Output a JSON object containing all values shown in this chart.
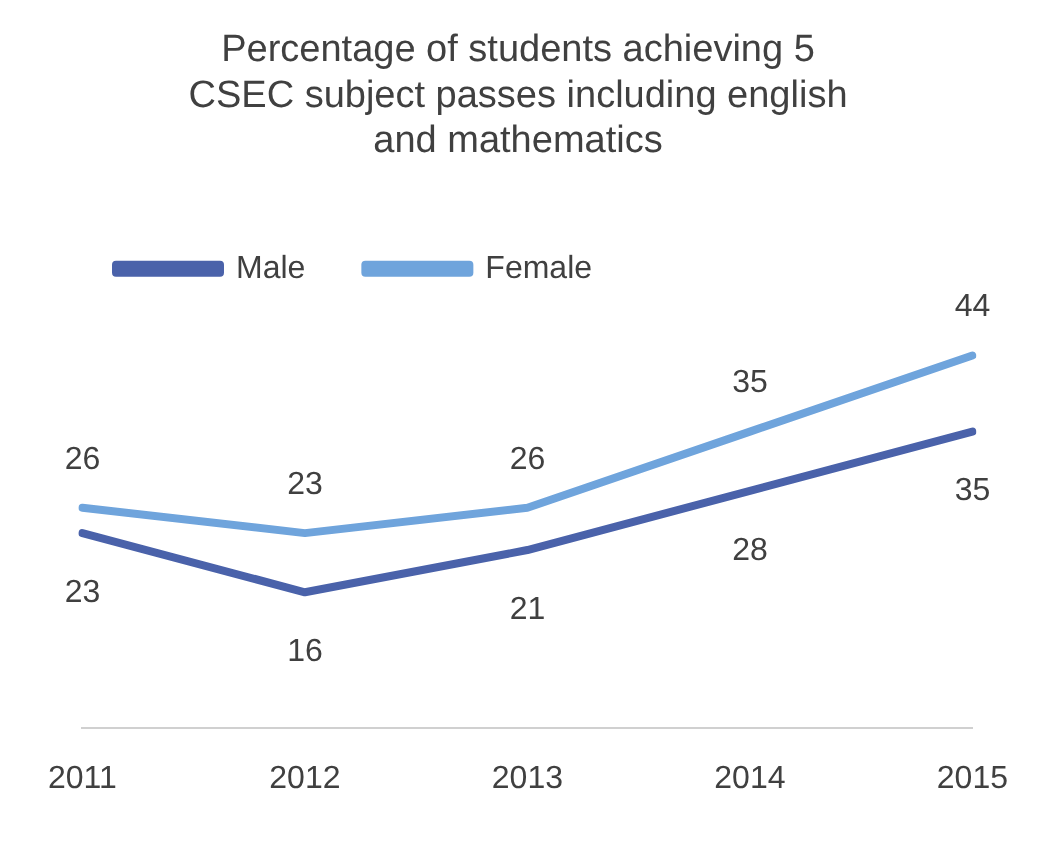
{
  "chart_data": {
    "type": "line",
    "title": "Percentage of students achieving 5 CSEC subject passes including english and mathematics",
    "categories": [
      "2011",
      "2012",
      "2013",
      "2014",
      "2015"
    ],
    "series": [
      {
        "name": "Male",
        "color": "#4a62aa",
        "values": [
          23,
          16,
          21,
          28,
          35
        ]
      },
      {
        "name": "Female",
        "color": "#6fa4dc",
        "values": [
          26,
          23,
          26,
          35,
          44
        ]
      }
    ],
    "data_labels": true,
    "legend": "top left",
    "grid": false,
    "marker": "none",
    "line_style": "solid",
    "tick_labels": "x"
  }
}
